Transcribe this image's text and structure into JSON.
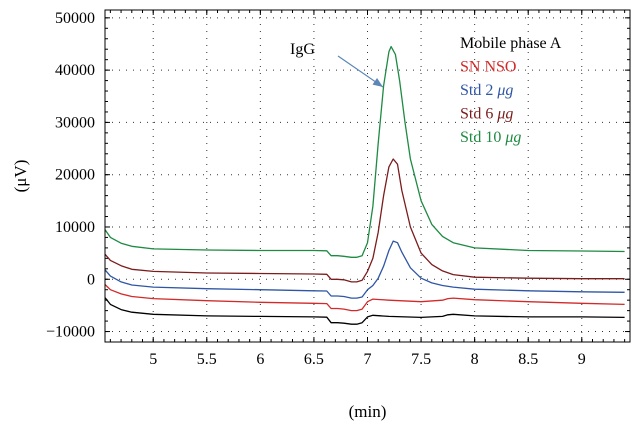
{
  "chart_data": {
    "type": "line",
    "xlabel": "(min)",
    "ylabel": "(μV)",
    "xlim": [
      4.55,
      9.45
    ],
    "ylim": [
      -12000,
      51500
    ],
    "xticks": [
      5,
      5.5,
      6,
      6.5,
      7,
      7.5,
      8,
      8.5,
      9
    ],
    "xtick_labels": [
      "5",
      "5.5",
      "6",
      "6.5",
      "7",
      "7.5",
      "8",
      "8.5",
      "9"
    ],
    "yticks": [
      -10000,
      0,
      10000,
      20000,
      30000,
      40000,
      50000
    ],
    "ytick_labels": [
      "−10000",
      "0",
      "10000",
      "20000",
      "30000",
      "40000",
      "50000"
    ],
    "grid": true,
    "legend_position": "top-right",
    "annotation": {
      "text": "IgG",
      "x": 7.1,
      "y": 38000
    },
    "series": [
      {
        "name": "Mobile phase A",
        "legend_label": "Mobile phase A",
        "color": "#000000",
        "x": [
          4.55,
          4.6,
          4.7,
          4.8,
          5.0,
          5.5,
          6.0,
          6.5,
          6.62,
          6.66,
          6.72,
          6.78,
          6.85,
          6.9,
          6.95,
          7.0,
          7.05,
          7.2,
          7.5,
          7.7,
          7.75,
          7.8,
          8.0,
          8.5,
          9.0,
          9.4
        ],
        "y": [
          -3500,
          -4800,
          -5800,
          -6300,
          -6700,
          -7000,
          -7100,
          -7200,
          -7250,
          -8300,
          -8300,
          -8400,
          -8600,
          -8600,
          -8300,
          -7200,
          -6900,
          -7100,
          -7300,
          -7100,
          -6800,
          -6700,
          -7000,
          -7200,
          -7200,
          -7300
        ]
      },
      {
        "name": "SN NSO",
        "legend_label": "SN NSO",
        "color": "#d22a2a",
        "x": [
          4.55,
          4.6,
          4.7,
          4.8,
          5.0,
          5.5,
          6.0,
          6.5,
          6.62,
          6.66,
          6.72,
          6.78,
          6.85,
          6.9,
          6.95,
          7.0,
          7.05,
          7.2,
          7.5,
          7.7,
          7.75,
          7.8,
          8.0,
          8.5,
          9.0,
          9.4
        ],
        "y": [
          -1000,
          -2000,
          -2800,
          -3300,
          -3700,
          -4100,
          -4400,
          -4600,
          -4650,
          -5600,
          -5600,
          -5700,
          -6000,
          -6000,
          -5700,
          -4300,
          -3800,
          -4000,
          -4300,
          -4000,
          -3700,
          -3600,
          -3900,
          -4300,
          -4600,
          -4800
        ]
      },
      {
        "name": "Std 2 μg",
        "legend_label": "Std 2 ",
        "legend_unit": "μg",
        "color": "#2f56a6",
        "x": [
          4.55,
          4.6,
          4.7,
          4.8,
          5.0,
          5.5,
          6.0,
          6.5,
          6.62,
          6.66,
          6.72,
          6.78,
          6.85,
          6.9,
          6.95,
          7.0,
          7.05,
          7.1,
          7.15,
          7.2,
          7.24,
          7.28,
          7.32,
          7.4,
          7.5,
          7.6,
          7.7,
          7.8,
          8.0,
          8.5,
          9.0,
          9.4
        ],
        "y": [
          1800,
          600,
          -500,
          -1100,
          -1500,
          -1800,
          -2000,
          -2200,
          -2250,
          -3200,
          -3200,
          -3300,
          -3600,
          -3600,
          -3400,
          -2000,
          -1200,
          200,
          2500,
          5500,
          7300,
          7000,
          5200,
          2200,
          200,
          -700,
          -1200,
          -1500,
          -1900,
          -2200,
          -2400,
          -2500
        ]
      },
      {
        "name": "Std 6 μg",
        "legend_label": "Std 6 ",
        "legend_unit": "μg",
        "color": "#7b1c1c",
        "x": [
          4.55,
          4.6,
          4.7,
          4.8,
          5.0,
          5.5,
          6.0,
          6.5,
          6.62,
          6.66,
          6.72,
          6.78,
          6.85,
          6.9,
          6.95,
          7.0,
          7.05,
          7.1,
          7.15,
          7.2,
          7.24,
          7.28,
          7.32,
          7.4,
          7.5,
          7.6,
          7.7,
          7.8,
          8.0,
          8.5,
          9.0,
          9.4
        ],
        "y": [
          4800,
          3600,
          2600,
          1900,
          1500,
          1200,
          1100,
          1000,
          950,
          0,
          0,
          -100,
          -500,
          -500,
          -200,
          1500,
          4000,
          9000,
          16000,
          21500,
          23000,
          22000,
          17000,
          10000,
          5000,
          2800,
          1600,
          900,
          400,
          200,
          100,
          100
        ]
      },
      {
        "name": "Std 10 μg",
        "legend_label": "Std 10 ",
        "legend_unit": "μg",
        "color": "#1e8a42",
        "x": [
          4.55,
          4.6,
          4.7,
          4.8,
          5.0,
          5.5,
          6.0,
          6.5,
          6.62,
          6.66,
          6.72,
          6.78,
          6.85,
          6.9,
          6.95,
          7.0,
          7.05,
          7.1,
          7.15,
          7.2,
          7.22,
          7.26,
          7.3,
          7.35,
          7.4,
          7.5,
          7.6,
          7.7,
          7.8,
          8.0,
          8.5,
          9.0,
          9.4
        ],
        "y": [
          9500,
          8000,
          6900,
          6300,
          5800,
          5600,
          5500,
          5500,
          5450,
          4500,
          4500,
          4400,
          4200,
          4200,
          4500,
          7000,
          14000,
          26000,
          37000,
          43500,
          44500,
          43000,
          38000,
          30000,
          23000,
          15000,
          10500,
          8200,
          7000,
          6000,
          5500,
          5400,
          5300
        ]
      }
    ]
  }
}
